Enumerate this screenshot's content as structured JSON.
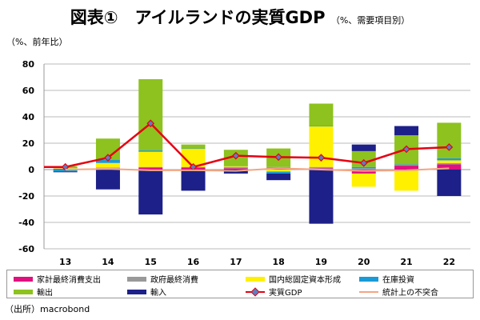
{
  "title": "図表①　アイルランドの実質GDP",
  "subtitle": "（%、需要項目別）",
  "ylabel": "（%、前年比）",
  "source": "（出所）macrobond",
  "chart_data": {
    "type": "bar",
    "stacked": true,
    "categories": [
      "13",
      "14",
      "15",
      "16",
      "17",
      "18",
      "19",
      "20",
      "21",
      "22"
    ],
    "ylim": [
      -60,
      80
    ],
    "yticks": [
      80,
      60,
      40,
      20,
      0,
      -20,
      -40,
      -60
    ],
    "grid": true,
    "legend_position": "bottom",
    "series": [
      {
        "name": "家計最終消費支出",
        "kind": "bar",
        "color": "#e0107f",
        "values": [
          0.5,
          1,
          1.5,
          1.5,
          1,
          1,
          1,
          -3,
          3,
          4
        ]
      },
      {
        "name": "政府最終消費",
        "kind": "bar",
        "color": "#999999",
        "values": [
          0.3,
          0.5,
          0.5,
          0.5,
          1,
          1,
          1,
          1,
          1,
          1
        ]
      },
      {
        "name": "国内総固定資本形成",
        "kind": "bar",
        "color": "#fff000",
        "values": [
          0.3,
          3.5,
          11.5,
          14,
          1,
          -1.5,
          31,
          -10,
          -16,
          2
        ]
      },
      {
        "name": "在庫投資",
        "kind": "bar",
        "color": "#1a9ad6",
        "values": [
          -1.5,
          2.5,
          1,
          0,
          0,
          -1.5,
          0,
          1,
          0,
          1.5
        ]
      },
      {
        "name": "輸出",
        "kind": "bar",
        "color": "#8dc21f",
        "values": [
          1.5,
          16,
          54,
          3,
          12,
          14,
          17,
          12,
          22,
          27
        ]
      },
      {
        "name": "輸入",
        "kind": "bar",
        "color": "#1d2088",
        "values": [
          -0.5,
          -15,
          -34,
          -16,
          -3,
          -5,
          -41,
          5,
          7,
          -20
        ]
      },
      {
        "name": "実質GDP",
        "kind": "line",
        "color": "#e60012",
        "values": [
          2,
          9,
          35,
          2,
          10.5,
          9.5,
          9,
          5,
          15.5,
          17
        ]
      },
      {
        "name": "統計上の不突合",
        "kind": "line",
        "color": "#f4a582",
        "values": [
          0,
          0.5,
          -0.5,
          -0.5,
          -1,
          1,
          0,
          -1,
          -0.5,
          1
        ]
      }
    ]
  }
}
